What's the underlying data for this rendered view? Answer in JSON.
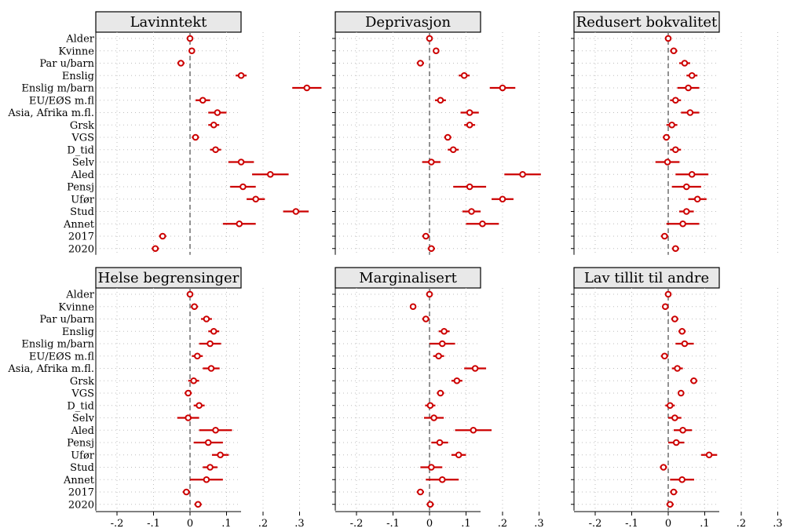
{
  "chart_data": {
    "type": "scatter",
    "subtype": "coefficient-plot",
    "row_labels": [
      "Alder",
      "Kvinne",
      "Par u/barn",
      "Enslig",
      "Enslig m/barn",
      "EU/EØS m.fl",
      "Asia, Afrika m.fl.",
      "Grsk",
      "VGS",
      "D_tid",
      "Selv",
      "Aled",
      "Pensj",
      "Ufør",
      "Stud",
      "Annet",
      "2017",
      "2020"
    ],
    "x_ticks": [
      -0.2,
      -0.1,
      0,
      0.1,
      0.2,
      0.3
    ],
    "x_tick_labels": [
      "-.2",
      "-.1",
      "0",
      ".1",
      ".2",
      ".3"
    ],
    "xlim": [
      -0.22,
      0.31
    ],
    "reference_line": 0,
    "grid": "dotted",
    "point_color": "#cc0000",
    "panels": [
      {
        "title": "Lavinntekt",
        "estimates": [
          0,
          0.005,
          -0.025,
          0.14,
          0.32,
          0.035,
          0.075,
          0.065,
          0.015,
          0.07,
          0.14,
          0.22,
          0.145,
          0.18,
          0.29,
          0.135,
          -0.075,
          -0.095
        ],
        "lower": [
          -0.003,
          -0.002,
          -0.035,
          0.125,
          0.28,
          0.015,
          0.05,
          0.05,
          0.005,
          0.055,
          0.105,
          0.17,
          0.11,
          0.155,
          0.255,
          0.09,
          -0.085,
          -0.105
        ],
        "upper": [
          0.003,
          0.012,
          -0.015,
          0.155,
          0.36,
          0.055,
          0.1,
          0.08,
          0.025,
          0.085,
          0.175,
          0.27,
          0.18,
          0.205,
          0.325,
          0.18,
          -0.065,
          -0.085
        ]
      },
      {
        "title": "Deprivasjon",
        "estimates": [
          0,
          0.018,
          -0.025,
          0.095,
          0.2,
          0.03,
          0.11,
          0.11,
          0.05,
          0.065,
          0.005,
          0.255,
          0.11,
          0.2,
          0.115,
          0.145,
          -0.01,
          0.005
        ],
        "lower": [
          -0.003,
          0.01,
          -0.035,
          0.08,
          0.165,
          0.015,
          0.085,
          0.095,
          0.04,
          0.05,
          -0.02,
          0.205,
          0.065,
          0.17,
          0.09,
          0.1,
          -0.02,
          -0.005
        ],
        "upper": [
          0.003,
          0.026,
          -0.015,
          0.11,
          0.235,
          0.045,
          0.135,
          0.125,
          0.06,
          0.08,
          0.03,
          0.305,
          0.155,
          0.23,
          0.14,
          0.19,
          0,
          0.015
        ]
      },
      {
        "title": "Redusert bokvalitet",
        "estimates": [
          0,
          0.015,
          0.045,
          0.065,
          0.055,
          0.02,
          0.06,
          0.01,
          -0.005,
          0.02,
          -0.002,
          0.065,
          0.05,
          0.08,
          0.05,
          0.04,
          -0.01,
          0.02
        ],
        "lower": [
          -0.003,
          0.005,
          0.03,
          0.05,
          0.025,
          0.005,
          0.035,
          -0.005,
          -0.015,
          0.005,
          -0.035,
          0.02,
          0.01,
          0.055,
          0.03,
          -0.005,
          -0.02,
          0.01
        ],
        "upper": [
          0.003,
          0.025,
          0.06,
          0.08,
          0.085,
          0.035,
          0.085,
          0.025,
          0.005,
          0.035,
          0.031,
          0.11,
          0.09,
          0.105,
          0.07,
          0.085,
          0,
          0.03
        ]
      },
      {
        "title": "Helse begrensinger",
        "estimates": [
          0,
          0.012,
          0.045,
          0.065,
          0.055,
          0.02,
          0.058,
          0.01,
          -0.005,
          0.025,
          -0.005,
          0.07,
          0.05,
          0.083,
          0.055,
          0.045,
          -0.01,
          0.022
        ],
        "lower": [
          -0.003,
          0.002,
          0.03,
          0.05,
          0.025,
          0.005,
          0.035,
          -0.005,
          -0.015,
          0.01,
          -0.035,
          0.025,
          0.01,
          0.06,
          0.035,
          0,
          -0.02,
          0.012
        ],
        "upper": [
          0.003,
          0.022,
          0.06,
          0.08,
          0.085,
          0.035,
          0.081,
          0.025,
          0.005,
          0.04,
          0.025,
          0.115,
          0.09,
          0.106,
          0.075,
          0.09,
          0,
          0.032
        ]
      },
      {
        "title": "Marginalisert",
        "estimates": [
          0,
          -0.045,
          -0.01,
          0.04,
          0.035,
          0.025,
          0.125,
          0.075,
          0.03,
          0.002,
          0.012,
          0.12,
          0.028,
          0.08,
          0.005,
          0.035,
          -0.025,
          0.002
        ],
        "lower": [
          -0.003,
          -0.052,
          -0.02,
          0.025,
          0,
          0.01,
          0.095,
          0.06,
          0.02,
          -0.012,
          -0.015,
          0.07,
          0.005,
          0.06,
          -0.025,
          -0.01,
          -0.035,
          -0.008
        ],
        "upper": [
          0.003,
          -0.038,
          0,
          0.055,
          0.07,
          0.04,
          0.155,
          0.09,
          0.04,
          0.016,
          0.039,
          0.17,
          0.051,
          0.1,
          0.035,
          0.08,
          -0.015,
          0.012
        ]
      },
      {
        "title": "Lav tillit til andre",
        "estimates": [
          0,
          -0.008,
          0.018,
          0.038,
          0.045,
          -0.01,
          0.025,
          0.07,
          0.035,
          0.005,
          0.018,
          0.04,
          0.022,
          0.112,
          -0.013,
          0.038,
          0.015,
          0.005
        ],
        "lower": [
          -0.003,
          -0.015,
          0.008,
          0.028,
          0.02,
          -0.02,
          0.01,
          0.06,
          0.028,
          -0.008,
          0,
          0.015,
          0,
          0.09,
          -0.023,
          0.005,
          0.005,
          -0.005
        ],
        "upper": [
          0.003,
          -0.001,
          0.028,
          0.048,
          0.07,
          0,
          0.04,
          0.08,
          0.042,
          0.018,
          0.036,
          0.065,
          0.044,
          0.134,
          -0.003,
          0.071,
          0.025,
          0.015
        ]
      }
    ]
  }
}
